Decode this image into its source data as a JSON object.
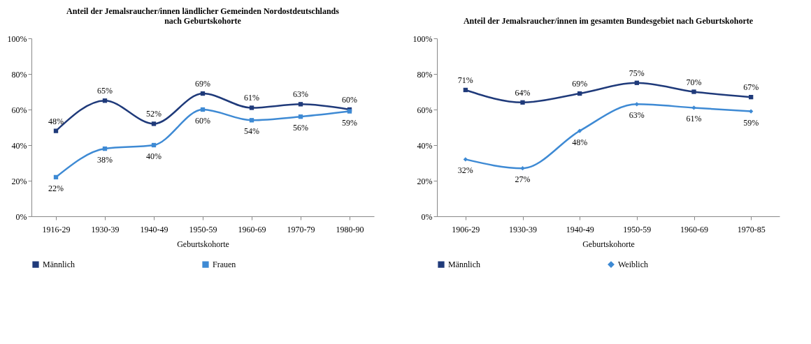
{
  "chart_data": [
    {
      "type": "line",
      "title": "Anteil der Jemalsraucher/innen ländlicher Gemeinden Nordostdeutschlands nach Geburtskohorte",
      "xlabel": "Geburtskohorte",
      "categories": [
        "1916-29",
        "1930-39",
        "1940-49",
        "1950-59",
        "1960-69",
        "1970-79",
        "1980-90"
      ],
      "series": [
        {
          "name": "Männlich",
          "color": "#1f3a7a",
          "marker": "square",
          "values": [
            48,
            65,
            52,
            69,
            61,
            63,
            60
          ],
          "value_labels": [
            "48%",
            "65%",
            "52%",
            "69%",
            "61%",
            "63%",
            "60%"
          ]
        },
        {
          "name": "Frauen",
          "color": "#3e8ad4",
          "marker": "square",
          "values": [
            22,
            38,
            40,
            60,
            54,
            56,
            59
          ],
          "value_labels": [
            "22%",
            "38%",
            "40%",
            "60%",
            "54%",
            "56%",
            "59%"
          ]
        }
      ],
      "ylim": [
        0,
        100
      ],
      "yticks": [
        {
          "value": 0,
          "label": "0%"
        },
        {
          "value": 20,
          "label": "20%"
        },
        {
          "value": 40,
          "label": "40%"
        },
        {
          "value": 60,
          "label": "60%"
        },
        {
          "value": 80,
          "label": "80%"
        },
        {
          "value": 100,
          "label": "100%"
        }
      ],
      "grid": false,
      "legend": "bottom",
      "line_style": "solid"
    },
    {
      "type": "line",
      "title": "Anteil der Jemalsraucher/innen im gesamten Bundesgebiet nach Geburtskohorte",
      "xlabel": "Geburtskohorte",
      "categories": [
        "1906-29",
        "1930-39",
        "1940-49",
        "1950-59",
        "1960-69",
        "1970-85"
      ],
      "series": [
        {
          "name": "Männlich",
          "color": "#1f3a7a",
          "marker": "square",
          "values": [
            71,
            64,
            69,
            75,
            70,
            67
          ],
          "value_labels": [
            "71%",
            "64%",
            "69%",
            "75%",
            "70%",
            "67%"
          ]
        },
        {
          "name": "Weiblich",
          "color": "#3e8ad4",
          "marker": "diamond",
          "values": [
            32,
            27,
            48,
            63,
            61,
            59
          ],
          "value_labels": [
            "32%",
            "27%",
            "48%",
            "63%",
            "61%",
            "59%"
          ]
        }
      ],
      "ylim": [
        0,
        100
      ],
      "yticks": [
        {
          "value": 0,
          "label": "0%"
        },
        {
          "value": 20,
          "label": "20%"
        },
        {
          "value": 40,
          "label": "40%"
        },
        {
          "value": 60,
          "label": "60%"
        },
        {
          "value": 80,
          "label": "80%"
        },
        {
          "value": 100,
          "label": "100%"
        }
      ],
      "grid": false,
      "legend": "bottom",
      "line_style": "solid"
    }
  ]
}
